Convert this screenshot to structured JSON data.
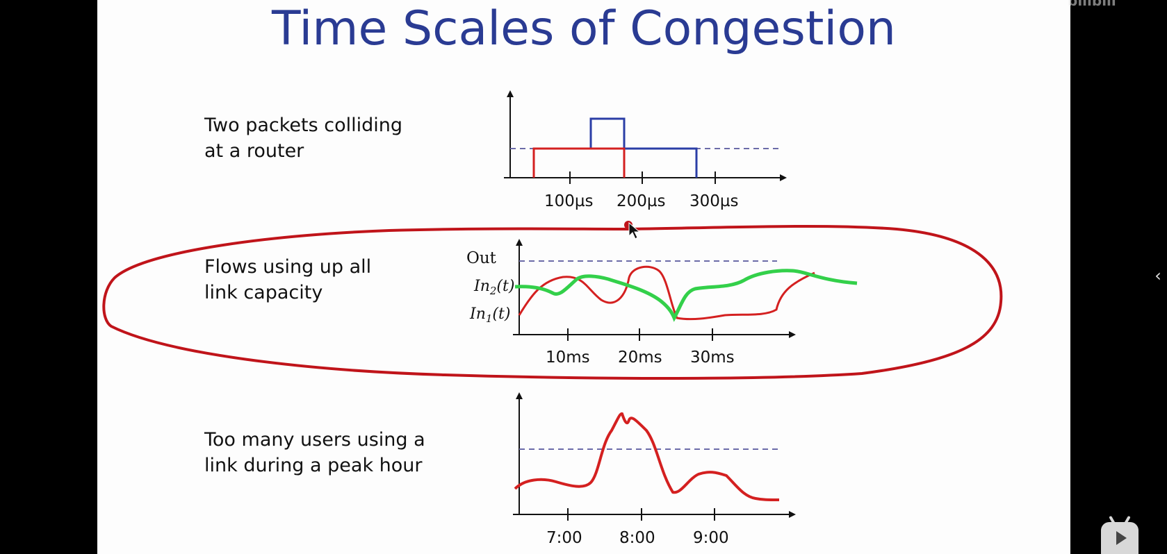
{
  "slide": {
    "title": "Time Scales of Congestion",
    "sections": [
      {
        "caption_lines": [
          "Two packets colliding",
          "at a router"
        ],
        "tick_labels": [
          "100µs",
          "200µs",
          "300µs"
        ]
      },
      {
        "caption_lines": [
          "Flows using up all",
          "link capacity"
        ],
        "y_labels": {
          "out": "Out",
          "in2": "In",
          "in2_sub": "2",
          "in1": "In",
          "in1_sub": "1",
          "t_suffix": "(t)"
        },
        "tick_labels": [
          "10ms",
          "20ms",
          "30ms"
        ]
      },
      {
        "caption_lines": [
          "Too many users using a",
          "link during a peak hour"
        ],
        "tick_labels": [
          "7:00",
          "8:00",
          "9:00"
        ]
      }
    ]
  },
  "overlay": {
    "watermark": "bilibili",
    "expand_icon": "chevron-left-icon",
    "play_icon": "bilibili-play-icon"
  },
  "colors": {
    "title": "#2a3b93",
    "blue_packet": "#2b3ea6",
    "red": "#d42020",
    "green": "#33d04a",
    "dashed": "#6b6ba8",
    "annotation_ellipse": "#c0141a"
  },
  "chart_data": [
    {
      "type": "line",
      "description_ref": "packet-collision",
      "categories": [
        "100µs",
        "200µs",
        "300µs"
      ],
      "series": [],
      "grid": false
    },
    {
      "type": "line",
      "categories": [
        "10ms",
        "20ms",
        "30ms"
      ],
      "series": [],
      "grid": false
    },
    {
      "type": "line",
      "categories": [
        "7:00",
        "8:00",
        "9:00"
      ],
      "series": [],
      "grid": false
    }
  ]
}
